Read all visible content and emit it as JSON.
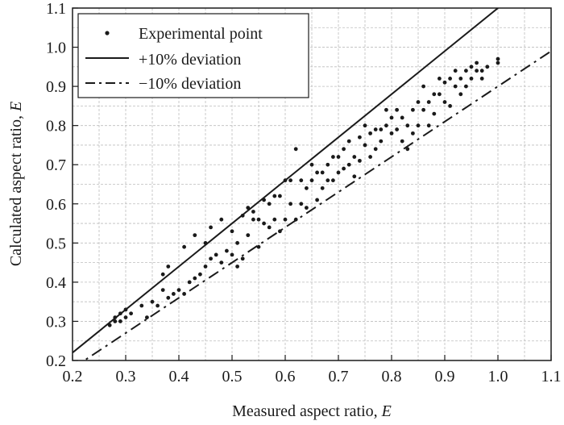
{
  "chart_data": {
    "type": "scatter",
    "title": "",
    "xlabel": "Measured aspect ratio, ",
    "xlabel_var": "E",
    "ylabel": "Calculated aspect ratio, ",
    "ylabel_var": "E",
    "xlim": [
      0.2,
      1.1
    ],
    "ylim": [
      0.2,
      1.1
    ],
    "xticks": [
      0.2,
      0.3,
      0.4,
      0.5,
      0.6,
      0.7,
      0.8,
      0.9,
      1.0,
      1.1
    ],
    "yticks": [
      0.2,
      0.3,
      0.4,
      0.5,
      0.6,
      0.7,
      0.8,
      0.9,
      1.0,
      1.1
    ],
    "xtick_labels": [
      "0.2",
      "0.3",
      "0.4",
      "0.5",
      "0.6",
      "0.7",
      "0.8",
      "0.9",
      "1.0",
      "1.1"
    ],
    "ytick_labels": [
      "0.2",
      "0.3",
      "0.4",
      "0.5",
      "0.6",
      "0.7",
      "0.8",
      "0.9",
      "1.0",
      "1.1"
    ],
    "grid": true,
    "legend_position": "top-left",
    "legend": [
      {
        "label": "Experimental point",
        "style": "dot"
      },
      {
        "label": "+10% deviation",
        "style": "solid"
      },
      {
        "label": "−10% deviation",
        "style": "dash-dot"
      }
    ],
    "lines": [
      {
        "name": "+10% deviation",
        "slope": 1.1,
        "x_range": [
          0.2,
          1.1
        ]
      },
      {
        "name": "−10% deviation",
        "slope": 0.9,
        "x_range": [
          0.2,
          1.1
        ]
      }
    ],
    "series": [
      {
        "name": "Experimental point",
        "points": [
          [
            0.27,
            0.29
          ],
          [
            0.28,
            0.3
          ],
          [
            0.28,
            0.31
          ],
          [
            0.29,
            0.3
          ],
          [
            0.29,
            0.32
          ],
          [
            0.3,
            0.31
          ],
          [
            0.3,
            0.33
          ],
          [
            0.31,
            0.32
          ],
          [
            0.33,
            0.34
          ],
          [
            0.34,
            0.31
          ],
          [
            0.35,
            0.35
          ],
          [
            0.36,
            0.34
          ],
          [
            0.37,
            0.38
          ],
          [
            0.37,
            0.42
          ],
          [
            0.38,
            0.36
          ],
          [
            0.38,
            0.44
          ],
          [
            0.39,
            0.37
          ],
          [
            0.4,
            0.38
          ],
          [
            0.41,
            0.37
          ],
          [
            0.41,
            0.49
          ],
          [
            0.42,
            0.4
          ],
          [
            0.43,
            0.41
          ],
          [
            0.43,
            0.52
          ],
          [
            0.44,
            0.42
          ],
          [
            0.45,
            0.44
          ],
          [
            0.45,
            0.5
          ],
          [
            0.46,
            0.46
          ],
          [
            0.46,
            0.54
          ],
          [
            0.47,
            0.47
          ],
          [
            0.48,
            0.56
          ],
          [
            0.48,
            0.45
          ],
          [
            0.49,
            0.48
          ],
          [
            0.5,
            0.47
          ],
          [
            0.5,
            0.53
          ],
          [
            0.51,
            0.44
          ],
          [
            0.51,
            0.5
          ],
          [
            0.52,
            0.57
          ],
          [
            0.52,
            0.46
          ],
          [
            0.53,
            0.59
          ],
          [
            0.53,
            0.52
          ],
          [
            0.54,
            0.58
          ],
          [
            0.54,
            0.56
          ],
          [
            0.55,
            0.56
          ],
          [
            0.55,
            0.49
          ],
          [
            0.56,
            0.55
          ],
          [
            0.56,
            0.61
          ],
          [
            0.57,
            0.54
          ],
          [
            0.57,
            0.6
          ],
          [
            0.58,
            0.56
          ],
          [
            0.58,
            0.62
          ],
          [
            0.59,
            0.53
          ],
          [
            0.59,
            0.62
          ],
          [
            0.6,
            0.56
          ],
          [
            0.6,
            0.66
          ],
          [
            0.61,
            0.6
          ],
          [
            0.61,
            0.66
          ],
          [
            0.62,
            0.56
          ],
          [
            0.62,
            0.74
          ],
          [
            0.63,
            0.6
          ],
          [
            0.63,
            0.66
          ],
          [
            0.64,
            0.59
          ],
          [
            0.64,
            0.64
          ],
          [
            0.65,
            0.66
          ],
          [
            0.65,
            0.7
          ],
          [
            0.66,
            0.61
          ],
          [
            0.66,
            0.68
          ],
          [
            0.67,
            0.64
          ],
          [
            0.67,
            0.68
          ],
          [
            0.68,
            0.7
          ],
          [
            0.68,
            0.66
          ],
          [
            0.69,
            0.72
          ],
          [
            0.69,
            0.66
          ],
          [
            0.7,
            0.72
          ],
          [
            0.7,
            0.68
          ],
          [
            0.71,
            0.74
          ],
          [
            0.71,
            0.69
          ],
          [
            0.72,
            0.7
          ],
          [
            0.72,
            0.76
          ],
          [
            0.73,
            0.72
          ],
          [
            0.73,
            0.67
          ],
          [
            0.74,
            0.77
          ],
          [
            0.74,
            0.71
          ],
          [
            0.75,
            0.75
          ],
          [
            0.75,
            0.8
          ],
          [
            0.76,
            0.78
          ],
          [
            0.76,
            0.72
          ],
          [
            0.77,
            0.79
          ],
          [
            0.77,
            0.74
          ],
          [
            0.78,
            0.79
          ],
          [
            0.78,
            0.76
          ],
          [
            0.79,
            0.84
          ],
          [
            0.79,
            0.8
          ],
          [
            0.8,
            0.78
          ],
          [
            0.8,
            0.82
          ],
          [
            0.81,
            0.79
          ],
          [
            0.81,
            0.84
          ],
          [
            0.82,
            0.82
          ],
          [
            0.82,
            0.76
          ],
          [
            0.83,
            0.8
          ],
          [
            0.83,
            0.74
          ],
          [
            0.84,
            0.84
          ],
          [
            0.84,
            0.78
          ],
          [
            0.85,
            0.86
          ],
          [
            0.85,
            0.8
          ],
          [
            0.86,
            0.84
          ],
          [
            0.86,
            0.9
          ],
          [
            0.87,
            0.86
          ],
          [
            0.87,
            0.8
          ],
          [
            0.88,
            0.88
          ],
          [
            0.88,
            0.83
          ],
          [
            0.89,
            0.88
          ],
          [
            0.89,
            0.92
          ],
          [
            0.9,
            0.86
          ],
          [
            0.9,
            0.91
          ],
          [
            0.91,
            0.92
          ],
          [
            0.91,
            0.85
          ],
          [
            0.92,
            0.9
          ],
          [
            0.92,
            0.94
          ],
          [
            0.93,
            0.92
          ],
          [
            0.93,
            0.88
          ],
          [
            0.94,
            0.94
          ],
          [
            0.94,
            0.9
          ],
          [
            0.95,
            0.95
          ],
          [
            0.95,
            0.92
          ],
          [
            0.96,
            0.94
          ],
          [
            0.96,
            0.96
          ],
          [
            0.97,
            0.94
          ],
          [
            0.97,
            0.92
          ],
          [
            0.98,
            0.95
          ],
          [
            1.0,
            0.96
          ],
          [
            1.0,
            0.97
          ]
        ]
      }
    ]
  }
}
